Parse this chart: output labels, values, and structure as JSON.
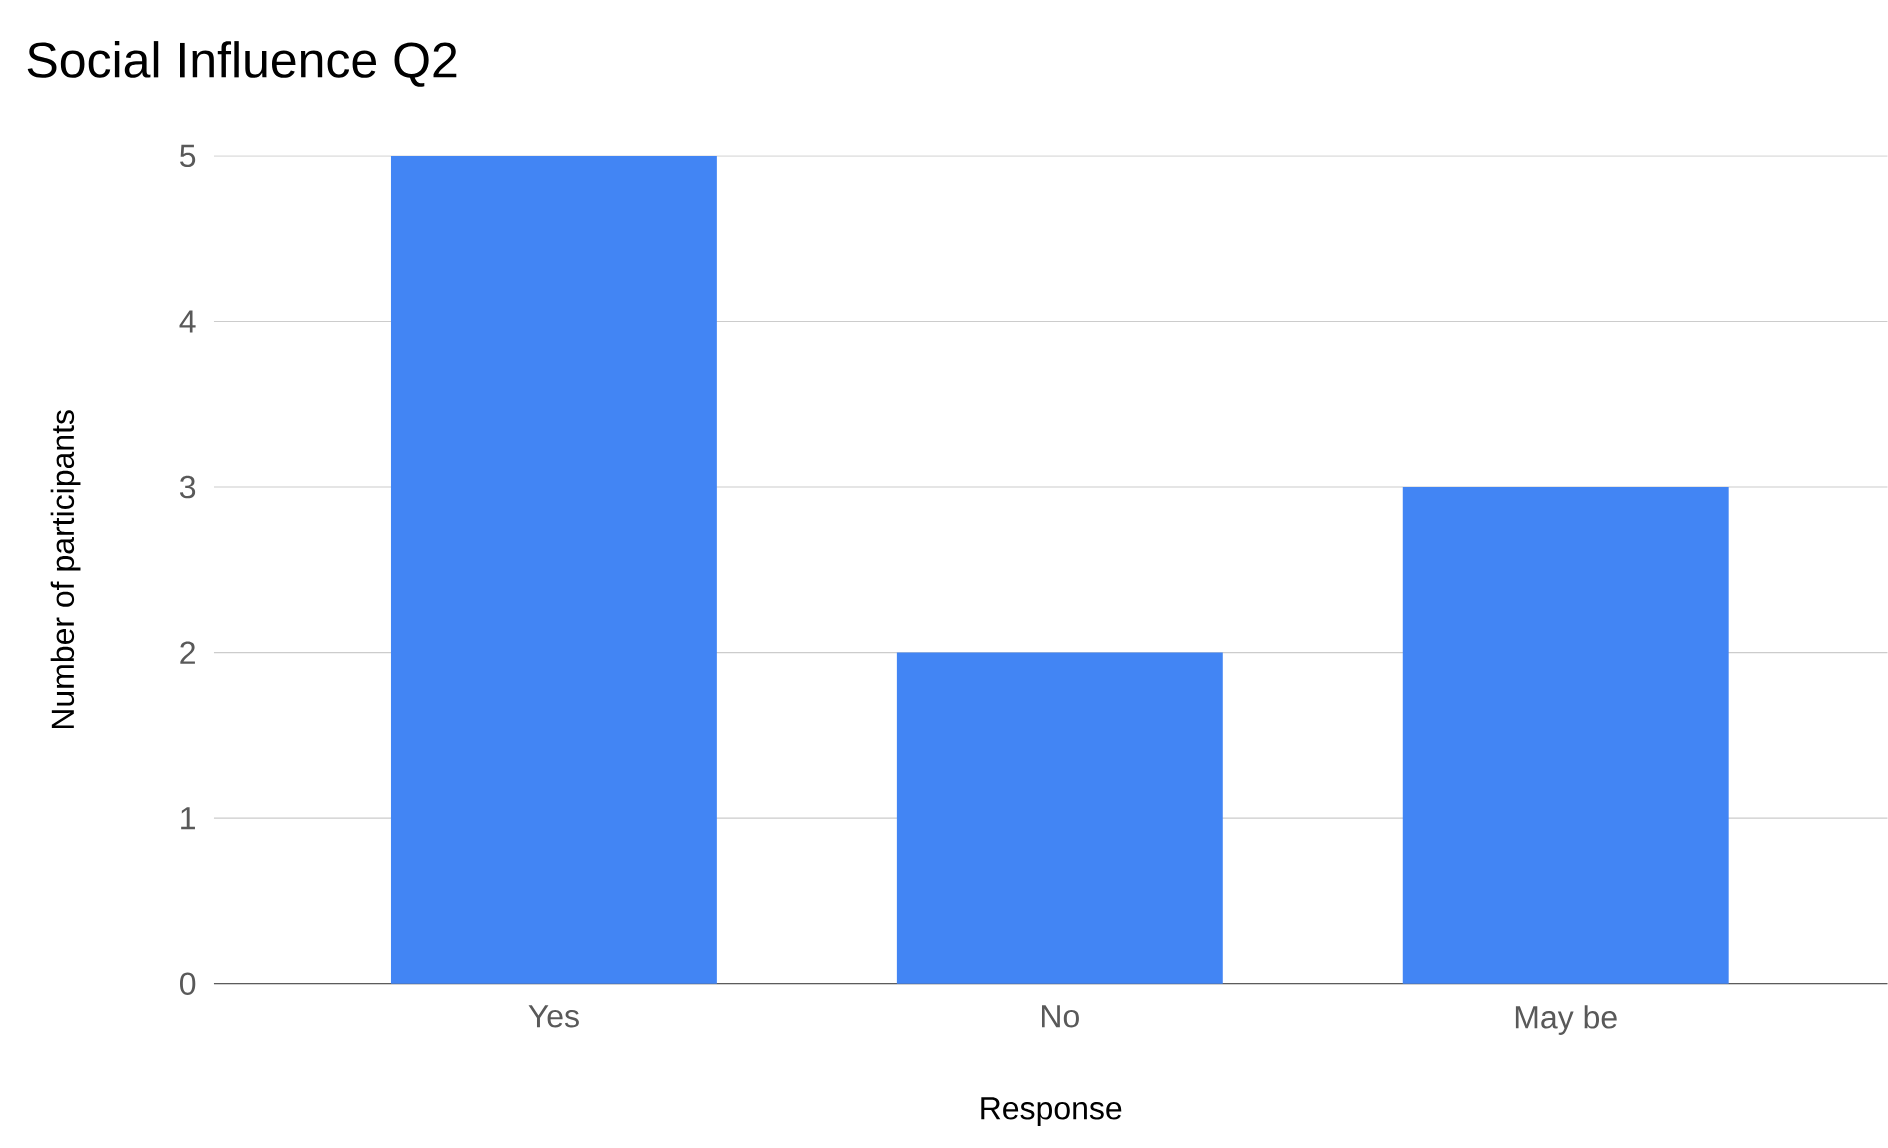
{
  "chart_data": {
    "type": "bar",
    "title": "Social Influence  Q2",
    "xlabel": "Response",
    "ylabel": "Number of participants",
    "categories": [
      "Yes",
      "No",
      "May be"
    ],
    "values": [
      5,
      2,
      3
    ],
    "color": "#4285f4",
    "ylim": [
      0,
      5
    ],
    "yticks": [
      0,
      1,
      2,
      3,
      4,
      5
    ],
    "grid": "y"
  }
}
